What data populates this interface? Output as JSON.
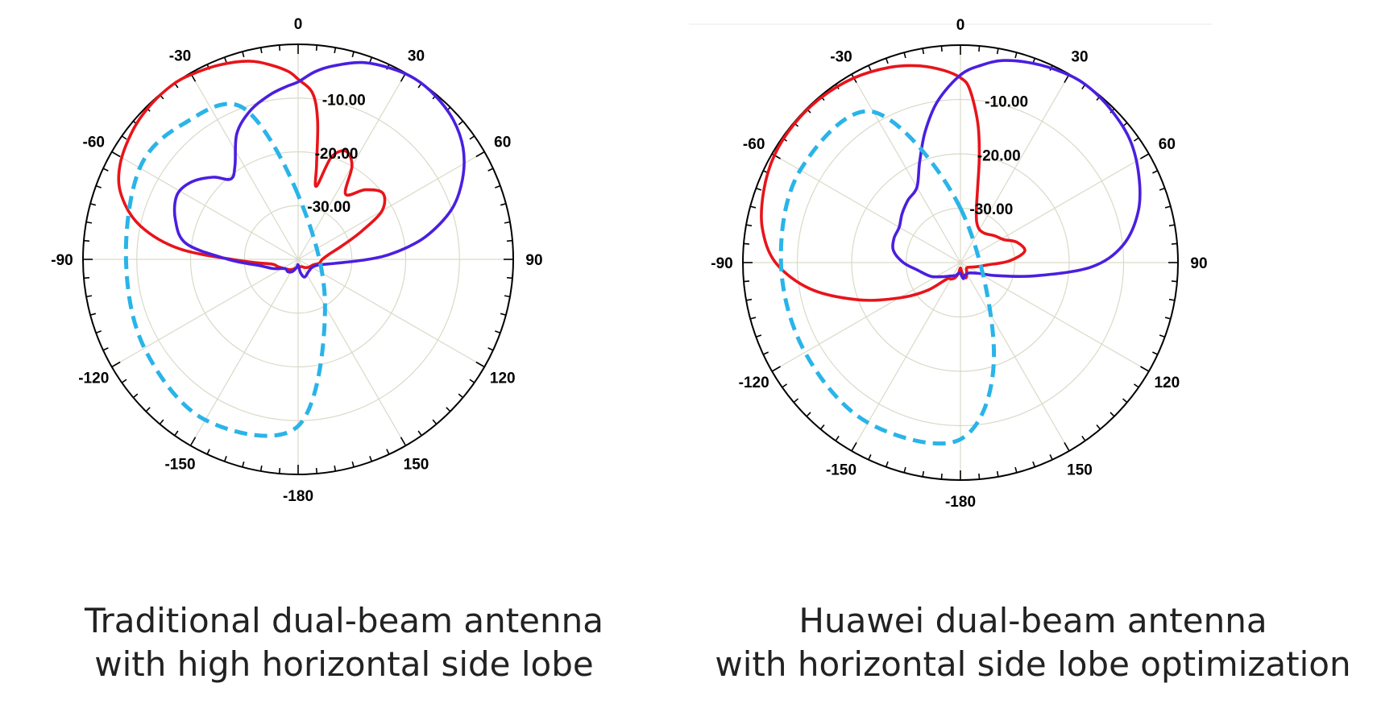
{
  "chart_data": [
    {
      "type": "polar",
      "caption": [
        "Traditional dual-beam antenna",
        "with high horizontal side lobe"
      ],
      "angular_ticks": [
        0,
        30,
        60,
        90,
        120,
        150,
        -180,
        -150,
        -120,
        -90,
        -60,
        -30
      ],
      "angular_tick_labels": [
        "0",
        "30",
        "60",
        "90",
        "120",
        "150",
        "-180",
        "-150",
        "-120",
        "-90",
        "-60",
        "-30"
      ],
      "radial_labels": [
        "-10.00",
        "-20.00",
        "-30.00"
      ],
      "radial_range_db": [
        -40,
        0
      ],
      "colors": {
        "red_beam": "#e8141a",
        "blue_beam": "#4a1fe0",
        "reference": "#2ab4e8"
      },
      "series": [
        {
          "color": "red",
          "style": "solid",
          "points": [
            [
              0,
              -6.5
            ],
            [
              5,
              -9
            ],
            [
              8,
              -14
            ],
            [
              11,
              -22
            ],
            [
              14,
              -26
            ],
            [
              18,
              -20
            ],
            [
              24,
              -18
            ],
            [
              30,
              -20
            ],
            [
              36,
              -25
            ],
            [
              44,
              -22
            ],
            [
              52,
              -20
            ],
            [
              60,
              -22
            ],
            [
              66,
              -27
            ],
            [
              72,
              -31
            ],
            [
              80,
              -34
            ],
            [
              90,
              -35.5
            ],
            [
              100,
              -36
            ],
            [
              110,
              -37
            ],
            [
              125,
              -37.5
            ],
            [
              140,
              -38
            ],
            [
              155,
              -38.5
            ],
            [
              170,
              -38.5
            ],
            [
              -180,
              -38.5
            ],
            [
              -170,
              -38.5
            ],
            [
              -155,
              -38
            ],
            [
              -140,
              -37.5
            ],
            [
              -125,
              -37
            ],
            [
              -110,
              -36
            ],
            [
              -100,
              -35
            ],
            [
              -92,
              -30
            ],
            [
              -85,
              -18
            ],
            [
              -78,
              -10
            ],
            [
              -70,
              -5
            ],
            [
              -62,
              -2.5
            ],
            [
              -52,
              -1
            ],
            [
              -44,
              -0.3
            ],
            [
              -36,
              0
            ],
            [
              -30,
              -0.3
            ],
            [
              -22,
              -1
            ],
            [
              -14,
              -2
            ],
            [
              -8,
              -3.5
            ],
            [
              -3,
              -5
            ],
            [
              0,
              -6.5
            ]
          ]
        },
        {
          "color": "blue",
          "style": "solid",
          "points": [
            [
              0,
              -7
            ],
            [
              5,
              -5
            ],
            [
              10,
              -3.5
            ],
            [
              18,
              -1.5
            ],
            [
              26,
              -0.5
            ],
            [
              33,
              0
            ],
            [
              40,
              -0.3
            ],
            [
              48,
              -1.2
            ],
            [
              56,
              -3
            ],
            [
              64,
              -6
            ],
            [
              72,
              -10
            ],
            [
              80,
              -16
            ],
            [
              86,
              -22
            ],
            [
              90,
              -27
            ],
            [
              96,
              -33
            ],
            [
              105,
              -36
            ],
            [
              120,
              -37
            ],
            [
              140,
              -37
            ],
            [
              160,
              -36.5
            ],
            [
              170,
              -37.5
            ],
            [
              -180,
              -39
            ],
            [
              -170,
              -38.5
            ],
            [
              -155,
              -37.5
            ],
            [
              -140,
              -37
            ],
            [
              -125,
              -37
            ],
            [
              -110,
              -35
            ],
            [
              -100,
              -33
            ],
            [
              -90,
              -27
            ],
            [
              -82,
              -19
            ],
            [
              -72,
              -16
            ],
            [
              -62,
              -14.5
            ],
            [
              -54,
              -15.5
            ],
            [
              -46,
              -18
            ],
            [
              -40,
              -20.5
            ],
            [
              -34,
              -19
            ],
            [
              -26,
              -14
            ],
            [
              -18,
              -11
            ],
            [
              -10,
              -9
            ],
            [
              -4,
              -7.8
            ],
            [
              0,
              -7
            ]
          ]
        },
        {
          "color": "cyan",
          "style": "dashed",
          "shape": "offset circle centred at azimuth ≈ -150 on the reference ring",
          "points": [
            [
              0,
              -28
            ],
            [
              -20,
              -10
            ],
            [
              -40,
              -7
            ],
            [
              -60,
              -6
            ],
            [
              -90,
              -8
            ],
            [
              -120,
              -7
            ],
            [
              -150,
              -5.5
            ],
            [
              -180,
              -9
            ],
            [
              150,
              -30
            ],
            [
              0,
              -28
            ]
          ]
        }
      ]
    },
    {
      "type": "polar",
      "caption": [
        "Huawei dual-beam antenna",
        "with horizontal side lobe optimization"
      ],
      "angular_ticks": [
        0,
        30,
        60,
        90,
        120,
        150,
        -180,
        -150,
        -120,
        -90,
        -60,
        -30
      ],
      "angular_tick_labels": [
        "0",
        "30",
        "60",
        "90",
        "120",
        "150",
        "-180",
        "-150",
        "-120",
        "-90",
        "-60",
        "-30"
      ],
      "radial_labels": [
        "-10.00",
        "-20.00",
        "-30.00"
      ],
      "radial_range_db": [
        -40,
        0
      ],
      "colors": {
        "red_beam": "#e8141a",
        "blue_beam": "#4a1fe0",
        "reference": "#2ab4e8"
      },
      "series": [
        {
          "color": "red",
          "style": "solid",
          "points": [
            [
              0,
              -6
            ],
            [
              3,
              -8
            ],
            [
              7,
              -14
            ],
            [
              10,
              -20
            ],
            [
              13,
              -26
            ],
            [
              17,
              -30
            ],
            [
              22,
              -32
            ],
            [
              30,
              -33
            ],
            [
              40,
              -33
            ],
            [
              52,
              -32
            ],
            [
              62,
              -31
            ],
            [
              70,
              -29
            ],
            [
              80,
              -28
            ],
            [
              88,
              -31
            ],
            [
              95,
              -35
            ],
            [
              105,
              -37
            ],
            [
              115,
              -38
            ],
            [
              130,
              -38.5
            ],
            [
              145,
              -38
            ],
            [
              160,
              -37
            ],
            [
              170,
              -38
            ],
            [
              -180,
              -39
            ],
            [
              -170,
              -38
            ],
            [
              -160,
              -37
            ],
            [
              -150,
              -36.5
            ],
            [
              -140,
              -36
            ],
            [
              -130,
              -32
            ],
            [
              -120,
              -27
            ],
            [
              -110,
              -20
            ],
            [
              -100,
              -12
            ],
            [
              -90,
              -6
            ],
            [
              -80,
              -3
            ],
            [
              -70,
              -1.5
            ],
            [
              -60,
              -0.5
            ],
            [
              -50,
              -0.2
            ],
            [
              -40,
              -0.3
            ],
            [
              -30,
              -0.8
            ],
            [
              -20,
              -1.8
            ],
            [
              -12,
              -3
            ],
            [
              -5,
              -4.5
            ],
            [
              0,
              -6
            ]
          ]
        },
        {
          "color": "blue",
          "style": "solid",
          "points": [
            [
              0,
              -5.5
            ],
            [
              6,
              -3.5
            ],
            [
              12,
              -2
            ],
            [
              20,
              -1
            ],
            [
              28,
              -0.3
            ],
            [
              35,
              0
            ],
            [
              44,
              -0.5
            ],
            [
              54,
              -1.5
            ],
            [
              64,
              -3.5
            ],
            [
              74,
              -6
            ],
            [
              84,
              -10
            ],
            [
              92,
              -16
            ],
            [
              100,
              -26
            ],
            [
              110,
              -33
            ],
            [
              120,
              -36
            ],
            [
              140,
              -37.5
            ],
            [
              160,
              -37.5
            ],
            [
              170,
              -37
            ],
            [
              -180,
              -38
            ],
            [
              -170,
              -38
            ],
            [
              -160,
              -37.5
            ],
            [
              -145,
              -37
            ],
            [
              -130,
              -36
            ],
            [
              -115,
              -34
            ],
            [
              -100,
              -32
            ],
            [
              -90,
              -29.5
            ],
            [
              -80,
              -27.5
            ],
            [
              -70,
              -27
            ],
            [
              -60,
              -27
            ],
            [
              -50,
              -26
            ],
            [
              -40,
              -25
            ],
            [
              -30,
              -24
            ],
            [
              -22,
              -20
            ],
            [
              -15,
              -15
            ],
            [
              -8,
              -10
            ],
            [
              0,
              -5.5
            ]
          ]
        },
        {
          "color": "cyan",
          "style": "dashed",
          "shape": "offset circle centred at azimuth ≈ -170 on the reference ring",
          "points": [
            [
              0,
              -30
            ],
            [
              -30,
              -8
            ],
            [
              -60,
              -6
            ],
            [
              -90,
              -7
            ],
            [
              -120,
              -7
            ],
            [
              -150,
              -6
            ],
            [
              -180,
              -7.5
            ],
            [
              160,
              -22
            ],
            [
              0,
              -30
            ]
          ]
        }
      ]
    }
  ]
}
